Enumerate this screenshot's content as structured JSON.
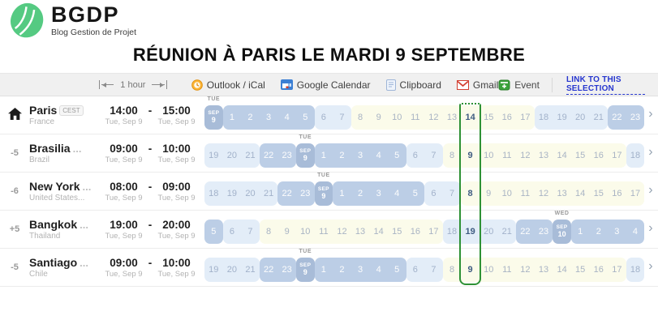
{
  "logo": {
    "brand": "BGDP",
    "tagline": "Blog Gestion de Projet"
  },
  "title": "RÉUNION À PARIS LE MARDI 9 SEPTEMBRE",
  "toolbar": {
    "duration_label": "1 hour",
    "actions": [
      "Outlook / iCal",
      "Google Calendar",
      "Clipboard",
      "Gmail"
    ],
    "event_label": "Event",
    "link_label": "LINK TO THIS SELECTION"
  },
  "selection_color": "#2e9135",
  "rows": [
    {
      "home": true,
      "offset": "",
      "city": "Paris",
      "trunc": "",
      "tz_badge": "CEST",
      "country": "France",
      "start_time": "14:00",
      "end_time": "15:00",
      "start_date": "Tue, Sep 9",
      "end_date": "Tue, Sep 9",
      "cells": [
        {
          "type": "date",
          "month": "SEP",
          "daynum": "9",
          "weekday": "TUE"
        },
        {
          "h": "1",
          "type": "night"
        },
        {
          "h": "2",
          "type": "night"
        },
        {
          "h": "3",
          "type": "night"
        },
        {
          "h": "4",
          "type": "night"
        },
        {
          "h": "5",
          "type": "night"
        },
        {
          "h": "6",
          "type": "dusk"
        },
        {
          "h": "7",
          "type": "dusk"
        },
        {
          "h": "8",
          "type": "day"
        },
        {
          "h": "9",
          "type": "day"
        },
        {
          "h": "10",
          "type": "day"
        },
        {
          "h": "11",
          "type": "day"
        },
        {
          "h": "12",
          "type": "day"
        },
        {
          "h": "13",
          "type": "day"
        },
        {
          "h": "14",
          "type": "day",
          "selected": true
        },
        {
          "h": "15",
          "type": "day"
        },
        {
          "h": "16",
          "type": "day"
        },
        {
          "h": "17",
          "type": "day"
        },
        {
          "h": "18",
          "type": "dusk"
        },
        {
          "h": "19",
          "type": "dusk"
        },
        {
          "h": "20",
          "type": "dusk"
        },
        {
          "h": "21",
          "type": "dusk"
        },
        {
          "h": "22",
          "type": "night"
        },
        {
          "h": "23",
          "type": "night"
        }
      ]
    },
    {
      "home": false,
      "offset": "-5",
      "city": "Brasilia",
      "trunc": " ...",
      "tz_badge": "",
      "country": "Brazil",
      "start_time": "09:00",
      "end_time": "10:00",
      "start_date": "Tue, Sep 9",
      "end_date": "Tue, Sep 9",
      "cells": [
        {
          "h": "19",
          "type": "dusk"
        },
        {
          "h": "20",
          "type": "dusk"
        },
        {
          "h": "21",
          "type": "dusk"
        },
        {
          "h": "22",
          "type": "night"
        },
        {
          "h": "23",
          "type": "night"
        },
        {
          "type": "date",
          "month": "SEP",
          "daynum": "9",
          "weekday": "TUE"
        },
        {
          "h": "1",
          "type": "night"
        },
        {
          "h": "2",
          "type": "night"
        },
        {
          "h": "3",
          "type": "night"
        },
        {
          "h": "4",
          "type": "night"
        },
        {
          "h": "5",
          "type": "night"
        },
        {
          "h": "6",
          "type": "dusk"
        },
        {
          "h": "7",
          "type": "dusk"
        },
        {
          "h": "8",
          "type": "day"
        },
        {
          "h": "9",
          "type": "day",
          "selected": true
        },
        {
          "h": "10",
          "type": "day"
        },
        {
          "h": "11",
          "type": "day"
        },
        {
          "h": "12",
          "type": "day"
        },
        {
          "h": "13",
          "type": "day"
        },
        {
          "h": "14",
          "type": "day"
        },
        {
          "h": "15",
          "type": "day"
        },
        {
          "h": "16",
          "type": "day"
        },
        {
          "h": "17",
          "type": "day"
        },
        {
          "h": "18",
          "type": "dusk"
        }
      ]
    },
    {
      "home": false,
      "offset": "-6",
      "city": "New York",
      "trunc": "...",
      "tz_badge": "",
      "country": "United States...",
      "start_time": "08:00",
      "end_time": "09:00",
      "start_date": "Tue, Sep 9",
      "end_date": "Tue, Sep 9",
      "cells": [
        {
          "h": "18",
          "type": "dusk"
        },
        {
          "h": "19",
          "type": "dusk"
        },
        {
          "h": "20",
          "type": "dusk"
        },
        {
          "h": "21",
          "type": "dusk"
        },
        {
          "h": "22",
          "type": "night"
        },
        {
          "h": "23",
          "type": "night"
        },
        {
          "type": "date",
          "month": "SEP",
          "daynum": "9",
          "weekday": "TUE"
        },
        {
          "h": "1",
          "type": "night"
        },
        {
          "h": "2",
          "type": "night"
        },
        {
          "h": "3",
          "type": "night"
        },
        {
          "h": "4",
          "type": "night"
        },
        {
          "h": "5",
          "type": "night"
        },
        {
          "h": "6",
          "type": "dusk"
        },
        {
          "h": "7",
          "type": "dusk"
        },
        {
          "h": "8",
          "type": "day",
          "selected": true
        },
        {
          "h": "9",
          "type": "day"
        },
        {
          "h": "10",
          "type": "day"
        },
        {
          "h": "11",
          "type": "day"
        },
        {
          "h": "12",
          "type": "day"
        },
        {
          "h": "13",
          "type": "day"
        },
        {
          "h": "14",
          "type": "day"
        },
        {
          "h": "15",
          "type": "day"
        },
        {
          "h": "16",
          "type": "day"
        },
        {
          "h": "17",
          "type": "day"
        }
      ]
    },
    {
      "home": false,
      "offset": "+5",
      "city": "Bangkok",
      "trunc": " ...",
      "tz_badge": "",
      "country": "Thailand",
      "start_time": "19:00",
      "end_time": "20:00",
      "start_date": "Tue, Sep 9",
      "end_date": "Tue, Sep 9",
      "cells": [
        {
          "h": "5",
          "type": "night"
        },
        {
          "h": "6",
          "type": "dusk"
        },
        {
          "h": "7",
          "type": "dusk"
        },
        {
          "h": "8",
          "type": "day"
        },
        {
          "h": "9",
          "type": "day"
        },
        {
          "h": "10",
          "type": "day"
        },
        {
          "h": "11",
          "type": "day"
        },
        {
          "h": "12",
          "type": "day"
        },
        {
          "h": "13",
          "type": "day"
        },
        {
          "h": "14",
          "type": "day"
        },
        {
          "h": "15",
          "type": "day"
        },
        {
          "h": "16",
          "type": "day"
        },
        {
          "h": "17",
          "type": "day"
        },
        {
          "h": "18",
          "type": "dusk"
        },
        {
          "h": "19",
          "type": "dusk",
          "selected": true
        },
        {
          "h": "20",
          "type": "dusk"
        },
        {
          "h": "21",
          "type": "dusk"
        },
        {
          "h": "22",
          "type": "night"
        },
        {
          "h": "23",
          "type": "night"
        },
        {
          "type": "date",
          "month": "SEP",
          "daynum": "10",
          "weekday": "WED"
        },
        {
          "h": "1",
          "type": "night"
        },
        {
          "h": "2",
          "type": "night"
        },
        {
          "h": "3",
          "type": "night"
        },
        {
          "h": "4",
          "type": "night"
        }
      ]
    },
    {
      "home": false,
      "offset": "-5",
      "city": "Santiago",
      "trunc": " ...",
      "tz_badge": "",
      "country": "Chile",
      "start_time": "09:00",
      "end_time": "10:00",
      "start_date": "Tue, Sep 9",
      "end_date": "Tue, Sep 9",
      "cells": [
        {
          "h": "19",
          "type": "dusk"
        },
        {
          "h": "20",
          "type": "dusk"
        },
        {
          "h": "21",
          "type": "dusk"
        },
        {
          "h": "22",
          "type": "night"
        },
        {
          "h": "23",
          "type": "night"
        },
        {
          "type": "date",
          "month": "SEP",
          "daynum": "9",
          "weekday": "TUE"
        },
        {
          "h": "1",
          "type": "night"
        },
        {
          "h": "2",
          "type": "night"
        },
        {
          "h": "3",
          "type": "night"
        },
        {
          "h": "4",
          "type": "night"
        },
        {
          "h": "5",
          "type": "night"
        },
        {
          "h": "6",
          "type": "dusk"
        },
        {
          "h": "7",
          "type": "dusk"
        },
        {
          "h": "8",
          "type": "day"
        },
        {
          "h": "9",
          "type": "day",
          "selected": true
        },
        {
          "h": "10",
          "type": "day"
        },
        {
          "h": "11",
          "type": "day"
        },
        {
          "h": "12",
          "type": "day"
        },
        {
          "h": "13",
          "type": "day"
        },
        {
          "h": "14",
          "type": "day"
        },
        {
          "h": "15",
          "type": "day"
        },
        {
          "h": "16",
          "type": "day"
        },
        {
          "h": "17",
          "type": "day"
        },
        {
          "h": "18",
          "type": "dusk"
        }
      ]
    }
  ]
}
